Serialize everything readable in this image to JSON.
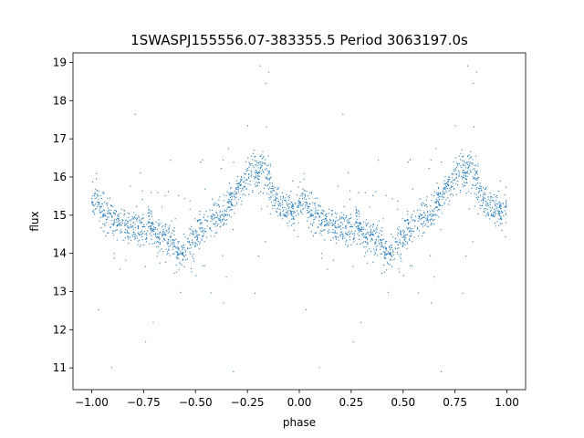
{
  "chart_data": {
    "type": "scatter",
    "title": "1SWASPJ155556.07-383355.5 Period 3063197.0s",
    "xlabel": "phase",
    "ylabel": "flux",
    "xlim": [
      -1.09,
      1.09
    ],
    "ylim": [
      10.43,
      19.25
    ],
    "xticks": [
      -1.0,
      -0.75,
      -0.5,
      -0.25,
      0.0,
      0.25,
      0.5,
      0.75,
      1.0
    ],
    "xtick_labels": [
      "−1.00",
      "−0.75",
      "−0.50",
      "−0.25",
      "0.00",
      "0.25",
      "0.50",
      "0.75",
      "1.00"
    ],
    "yticks": [
      11,
      12,
      13,
      14,
      15,
      16,
      17,
      18,
      19
    ],
    "ytick_labels": [
      "11",
      "12",
      "13",
      "14",
      "15",
      "16",
      "17",
      "18",
      "19"
    ],
    "grid": false,
    "marker_color": "#1f77b4",
    "series": [
      {
        "profile_phase": [
          0.0,
          0.02,
          0.04,
          0.06,
          0.08,
          0.1,
          0.12,
          0.14,
          0.16,
          0.18,
          0.2,
          0.22,
          0.24,
          0.26,
          0.28,
          0.3,
          0.32,
          0.34,
          0.36,
          0.38,
          0.4,
          0.42,
          0.44,
          0.46,
          0.48,
          0.5,
          0.52,
          0.54,
          0.56,
          0.58,
          0.6,
          0.62,
          0.64,
          0.66,
          0.68,
          0.7,
          0.72,
          0.74,
          0.76,
          0.78,
          0.8,
          0.82,
          0.84,
          0.86,
          0.88,
          0.9,
          0.92,
          0.94,
          0.96,
          0.98,
          1.0
        ],
        "profile_flux": [
          15.3,
          15.4,
          15.2,
          15.0,
          15.0,
          14.9,
          14.8,
          14.7,
          14.8,
          14.7,
          14.7,
          14.6,
          14.7,
          14.6,
          14.8,
          14.5,
          14.4,
          14.5,
          14.3,
          14.4,
          14.2,
          14.0,
          13.9,
          14.2,
          14.3,
          14.4,
          14.6,
          14.7,
          14.8,
          14.9,
          15.0,
          15.0,
          15.0,
          15.3,
          15.5,
          15.6,
          15.8,
          15.9,
          16.1,
          16.2,
          16.1,
          16.3,
          16.1,
          15.8,
          15.5,
          15.3,
          15.2,
          15.2,
          15.1,
          15.1,
          15.3
        ],
        "scatter_sd": 0.22,
        "outlier_fraction": 0.07,
        "points_per_unit_phase": 1200
      }
    ]
  }
}
